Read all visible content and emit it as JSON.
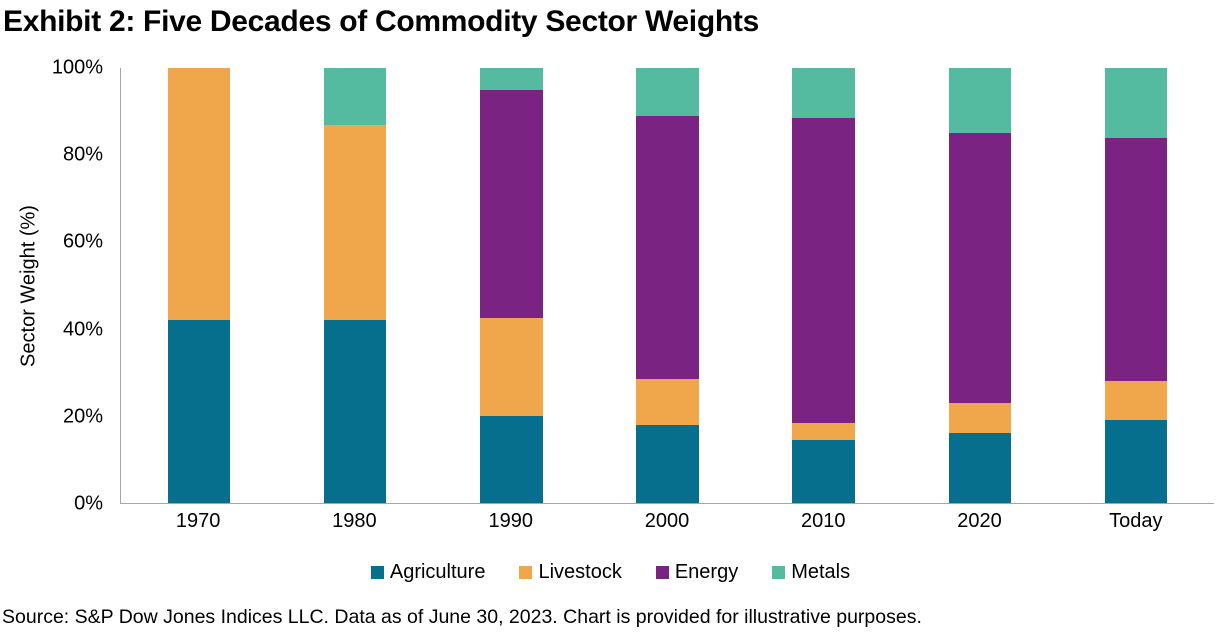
{
  "title": "Exhibit 2: Five Decades of Commodity Sector Weights",
  "footer": "Source: S&P Dow Jones Indices LLC. Data as of June 30, 2023. Chart is provided for illustrative purposes.",
  "axis_color": "#A6A6A6",
  "chart_data": {
    "type": "bar",
    "stacked": true,
    "stacked_to_100_percent": true,
    "title": "Exhibit 2: Five Decades of Commodity Sector Weights",
    "categories": [
      "1970",
      "1980",
      "1990",
      "2000",
      "2010",
      "2020",
      "Today"
    ],
    "series": [
      {
        "name": "Agriculture",
        "color": "#066F8D",
        "values": [
          42,
          42,
          20,
          18,
          14.5,
          16,
          19
        ]
      },
      {
        "name": "Livestock",
        "color": "#F0A64B",
        "values": [
          58,
          45,
          22.5,
          10.5,
          4,
          7,
          9
        ]
      },
      {
        "name": "Energy",
        "color": "#7B2382",
        "values": [
          0,
          0,
          52.5,
          60.5,
          70,
          62,
          56
        ]
      },
      {
        "name": "Metals",
        "color": "#54BBA0",
        "values": [
          0,
          13,
          5,
          11,
          11.5,
          15,
          16
        ]
      }
    ],
    "xlabel": "",
    "ylabel": "Sector Weight (%)",
    "ylim": [
      0,
      100
    ],
    "yticks": [
      "0%",
      "20%",
      "40%",
      "60%",
      "80%",
      "100%"
    ],
    "grid": false,
    "legend_position": "bottom",
    "bar_units": "percent"
  }
}
